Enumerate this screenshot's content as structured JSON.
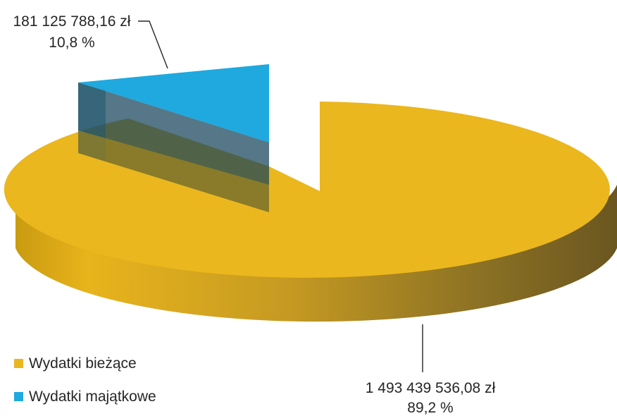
{
  "chart_data": {
    "type": "pie",
    "title": "",
    "is_3d": true,
    "exploded": true,
    "legend_position": "bottom-left",
    "series": [
      {
        "name": "Wydatki bieżące",
        "value": 1493439536.08,
        "value_label": "1 493 439 536,08 zł",
        "percent": 89.2,
        "percent_label": "89,2 %",
        "color": "#EBB71E"
      },
      {
        "name": "Wydatki majątkowe",
        "value": 181125788.16,
        "value_label": "181 125 788,16 zł",
        "percent": 10.8,
        "percent_label": "10,8 %",
        "color": "#1FA9DF"
      }
    ]
  }
}
